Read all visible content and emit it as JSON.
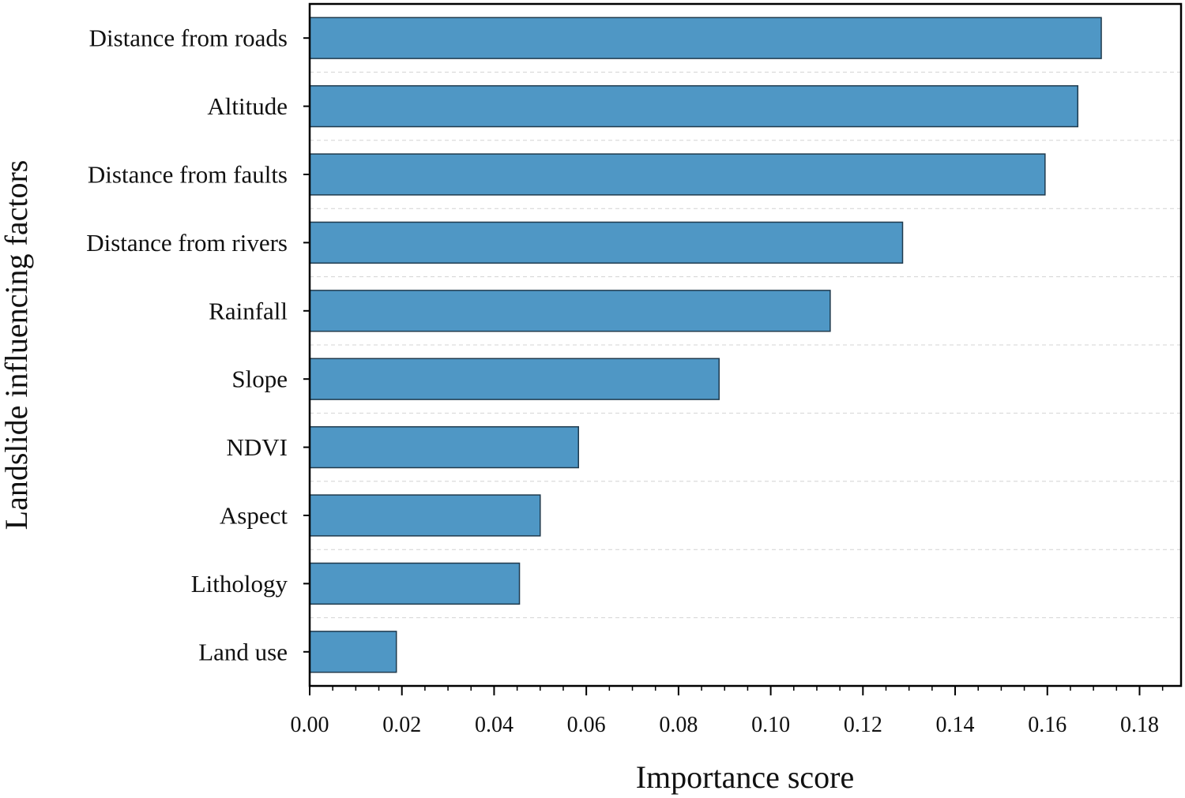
{
  "chart_data": {
    "type": "bar",
    "orientation": "horizontal",
    "title": "",
    "xlabel": "Importance score",
    "ylabel": "Landslide influencing factors",
    "categories": [
      "Distance from roads",
      "Altitude",
      "Distance from faults",
      "Distance from rivers",
      "Rainfall",
      "Slope",
      "NDVI",
      "Aspect",
      "Lithology",
      "Land use"
    ],
    "values": [
      0.1717,
      0.1666,
      0.1595,
      0.1286,
      0.1129,
      0.0888,
      0.0583,
      0.05,
      0.0455,
      0.0188
    ],
    "xlim": [
      0,
      0.189
    ],
    "x_ticks": [
      "0.00",
      "0.02",
      "0.04",
      "0.06",
      "0.08",
      "0.10",
      "0.12",
      "0.14",
      "0.16",
      "0.18"
    ],
    "grid": "horizontal dashed between bars",
    "bar_color": "#4f97c5",
    "bar_edge_color": "#1f3a4d",
    "grid_color": "#d4d4d4"
  }
}
